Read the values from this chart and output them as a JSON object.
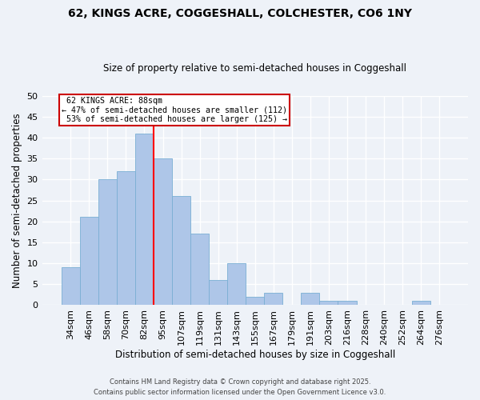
{
  "title": "62, KINGS ACRE, COGGESHALL, COLCHESTER, CO6 1NY",
  "subtitle": "Size of property relative to semi-detached houses in Coggeshall",
  "xlabel": "Distribution of semi-detached houses by size in Coggeshall",
  "ylabel": "Number of semi-detached properties",
  "bar_color": "#aec6e8",
  "bar_edge_color": "#7aafd4",
  "categories": [
    "34sqm",
    "46sqm",
    "58sqm",
    "70sqm",
    "82sqm",
    "95sqm",
    "107sqm",
    "119sqm",
    "131sqm",
    "143sqm",
    "155sqm",
    "167sqm",
    "179sqm",
    "191sqm",
    "203sqm",
    "216sqm",
    "228sqm",
    "240sqm",
    "252sqm",
    "264sqm",
    "276sqm"
  ],
  "values": [
    9,
    21,
    30,
    32,
    41,
    35,
    26,
    17,
    6,
    10,
    2,
    3,
    0,
    3,
    1,
    1,
    0,
    0,
    0,
    1,
    0
  ],
  "property_label": "62 KINGS ACRE: 88sqm",
  "pct_smaller": 47,
  "n_smaller": 112,
  "pct_larger": 53,
  "n_larger": 125,
  "red_line_x": 4.5,
  "ylim": [
    0,
    50
  ],
  "yticks": [
    0,
    5,
    10,
    15,
    20,
    25,
    30,
    35,
    40,
    45,
    50
  ],
  "background_color": "#eef2f8",
  "grid_color": "#ffffff",
  "footer1": "Contains HM Land Registry data © Crown copyright and database right 2025.",
  "footer2": "Contains public sector information licensed under the Open Government Licence v3.0."
}
